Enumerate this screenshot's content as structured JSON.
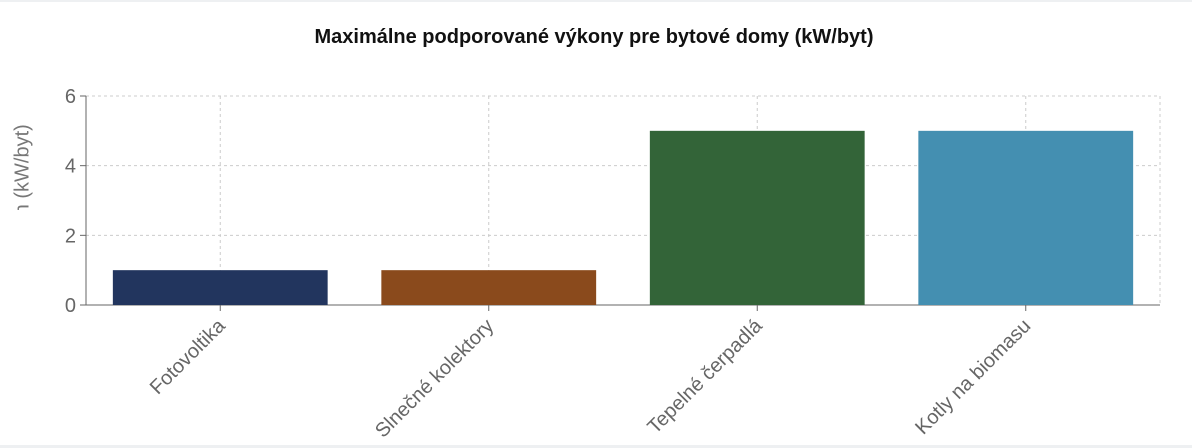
{
  "chart_data": {
    "type": "bar",
    "title": "Maximálne podporované výkony pre bytové domy (kW/byt)",
    "xlabel": "",
    "ylabel": "Výkon (kW/byt)",
    "ylim": [
      0,
      6
    ],
    "yticks": [
      0,
      2,
      4,
      6
    ],
    "grid": true,
    "categories": [
      "Fotovoltika",
      "Slnečné kolektory",
      "Tepelné čerpadlá",
      "Kotly na biomasu"
    ],
    "values": [
      1,
      1,
      5,
      5
    ],
    "colors": [
      "#22355e",
      "#8a4a1c",
      "#336438",
      "#448fb1"
    ]
  }
}
